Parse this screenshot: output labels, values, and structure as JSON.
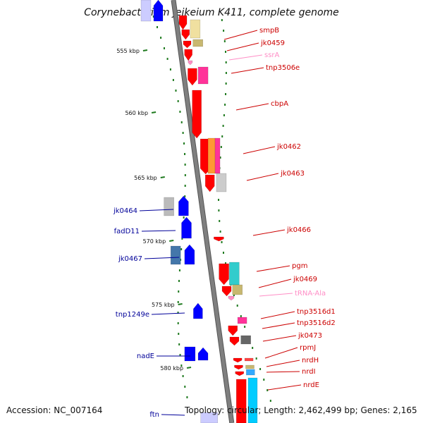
{
  "title": "Corynebacterium jeikeium K411, complete genome",
  "footer": {
    "accession": "Accession: NC_007164",
    "topology": "Topology: circular; Length: 2,462,499 bp; Genes: 2,165"
  },
  "colors": {
    "backbone": "#7f7f7f",
    "gc_tick": "#1f7a1f",
    "red": "#ff0000",
    "blue": "#0000ff",
    "pink": "#ff8ec6",
    "label_red": "#cc0000",
    "label_blue": "#000099"
  },
  "ticks": [
    {
      "label": "555 kbp"
    },
    {
      "label": "560 kbp"
    },
    {
      "label": "565 kbp"
    },
    {
      "label": "570 kbp"
    },
    {
      "label": "575 kbp"
    },
    {
      "label": "580 kbp"
    }
  ],
  "gene_labels": [
    {
      "text": "smpB",
      "strand": "forward",
      "kind": "cds"
    },
    {
      "text": "jk0459",
      "strand": "forward",
      "kind": "cds"
    },
    {
      "text": "ssrA",
      "strand": "forward",
      "kind": "rna"
    },
    {
      "text": "tnp3506e",
      "strand": "forward",
      "kind": "cds"
    },
    {
      "text": "cbpA",
      "strand": "forward",
      "kind": "cds"
    },
    {
      "text": "jk0462",
      "strand": "forward",
      "kind": "cds"
    },
    {
      "text": "jk0463",
      "strand": "forward",
      "kind": "cds"
    },
    {
      "text": "jk0464",
      "strand": "reverse",
      "kind": "cds"
    },
    {
      "text": "fadD11",
      "strand": "reverse",
      "kind": "cds"
    },
    {
      "text": "jk0466",
      "strand": "forward",
      "kind": "cds"
    },
    {
      "text": "jk0467",
      "strand": "reverse",
      "kind": "cds"
    },
    {
      "text": "pgm",
      "strand": "forward",
      "kind": "cds"
    },
    {
      "text": "jk0469",
      "strand": "forward",
      "kind": "cds"
    },
    {
      "text": "tRNA-Ala",
      "strand": "forward",
      "kind": "rna"
    },
    {
      "text": "tnp1249e",
      "strand": "reverse",
      "kind": "cds"
    },
    {
      "text": "tnp3516d1",
      "strand": "forward",
      "kind": "cds"
    },
    {
      "text": "tnp3516d2",
      "strand": "forward",
      "kind": "cds"
    },
    {
      "text": "jk0473",
      "strand": "forward",
      "kind": "cds"
    },
    {
      "text": "nadE",
      "strand": "reverse",
      "kind": "cds"
    },
    {
      "text": "rpmJ",
      "strand": "forward",
      "kind": "cds"
    },
    {
      "text": "nrdH",
      "strand": "forward",
      "kind": "cds"
    },
    {
      "text": "nrdI",
      "strand": "forward",
      "kind": "cds"
    },
    {
      "text": "nrdE",
      "strand": "forward",
      "kind": "cds"
    },
    {
      "text": "ftn",
      "strand": "reverse",
      "kind": "cds"
    }
  ]
}
